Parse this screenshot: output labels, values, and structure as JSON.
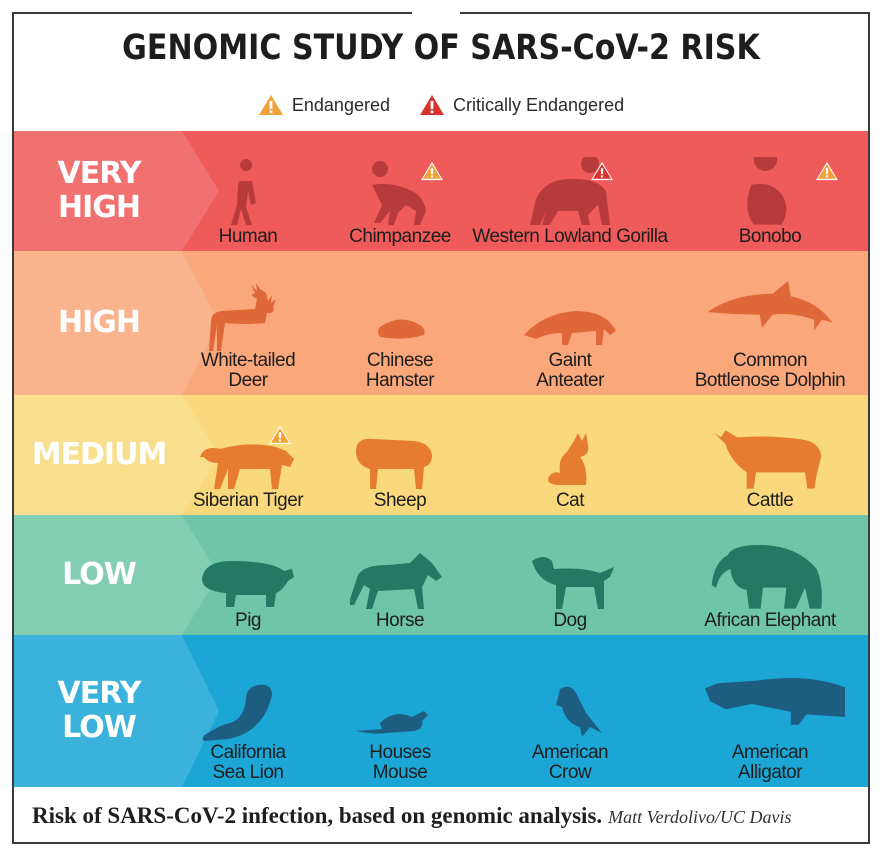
{
  "title": "GENOMIC STUDY OF SARS-CoV-2 RISK",
  "legend": {
    "endangered": "Endangered",
    "critically_endangered": "Critically Endangered"
  },
  "colors": {
    "very_high": "#ef5a5a",
    "high": "#f9a77b",
    "medium": "#f9d97c",
    "low": "#6fc5a7",
    "very_low": "#1ba6d6",
    "endangered_icon": "#f0a23a",
    "critically_endangered_icon": "#d8322f"
  },
  "bands": [
    {
      "label_lines": [
        "VERY",
        "HIGH"
      ],
      "animals": [
        {
          "lines": [
            "Human"
          ],
          "icon": "human-icon"
        },
        {
          "lines": [
            "Chimpanzee"
          ],
          "icon": "chimpanzee-icon",
          "status": "endangered"
        },
        {
          "lines": [
            "Western Lowland Gorilla"
          ],
          "icon": "gorilla-icon",
          "status": "critically-endangered"
        },
        {
          "lines": [
            "Bonobo"
          ],
          "icon": "bonobo-icon",
          "status": "endangered"
        }
      ]
    },
    {
      "label_lines": [
        "HIGH"
      ],
      "animals": [
        {
          "lines": [
            "White-tailed",
            "Deer"
          ],
          "icon": "deer-icon"
        },
        {
          "lines": [
            "Chinese",
            "Hamster"
          ],
          "icon": "hamster-icon"
        },
        {
          "lines": [
            "Gaint",
            "Anteater"
          ],
          "icon": "anteater-icon"
        },
        {
          "lines": [
            "Common",
            "Bottlenose Dolphin"
          ],
          "icon": "dolphin-icon"
        }
      ]
    },
    {
      "label_lines": [
        "MEDIUM"
      ],
      "animals": [
        {
          "lines": [
            "Siberian Tiger"
          ],
          "icon": "tiger-icon",
          "status": "endangered"
        },
        {
          "lines": [
            "Sheep"
          ],
          "icon": "sheep-icon"
        },
        {
          "lines": [
            "Cat"
          ],
          "icon": "cat-icon"
        },
        {
          "lines": [
            "Cattle"
          ],
          "icon": "cattle-icon"
        }
      ]
    },
    {
      "label_lines": [
        "LOW"
      ],
      "animals": [
        {
          "lines": [
            "Pig"
          ],
          "icon": "pig-icon"
        },
        {
          "lines": [
            "Horse"
          ],
          "icon": "horse-icon"
        },
        {
          "lines": [
            "Dog"
          ],
          "icon": "dog-icon"
        },
        {
          "lines": [
            "African Elephant"
          ],
          "icon": "elephant-icon"
        }
      ]
    },
    {
      "label_lines": [
        "VERY",
        "LOW"
      ],
      "animals": [
        {
          "lines": [
            "California",
            "Sea Lion"
          ],
          "icon": "sea-lion-icon"
        },
        {
          "lines": [
            "Houses",
            "Mouse"
          ],
          "icon": "mouse-icon"
        },
        {
          "lines": [
            "American",
            "Crow"
          ],
          "icon": "crow-icon"
        },
        {
          "lines": [
            "American",
            "Alligator"
          ],
          "icon": "alligator-icon"
        }
      ]
    }
  ],
  "caption": "Risk of SARS-CoV-2 infection, based on genomic analysis.",
  "credit": "Matt Verdolivo/UC Davis"
}
